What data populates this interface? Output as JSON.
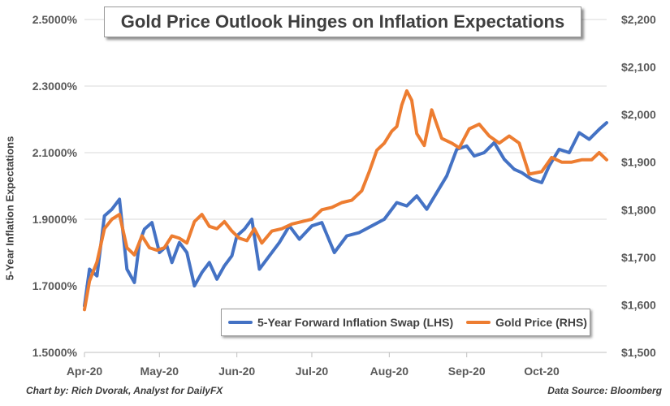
{
  "chart_data": {
    "type": "line",
    "title": "Gold Price Outlook Hinges on Inflation Expectations",
    "ylabel": "5-Year Inflation Expectations",
    "y2label": "",
    "x_ticks": [
      "Apr-20",
      "May-20",
      "Jun-20",
      "Jul-20",
      "Aug-20",
      "Sep-20",
      "Oct-20"
    ],
    "ylim": [
      1.5,
      2.5
    ],
    "y_ticks": [
      "1.5000%",
      "1.7000%",
      "1.9000%",
      "2.1000%",
      "2.3000%",
      "2.5000%"
    ],
    "y2lim": [
      1500,
      2200
    ],
    "y2_ticks": [
      "$1,500",
      "$1,600",
      "$1,700",
      "$1,800",
      "$1,900",
      "$2,000",
      "$2,100",
      "$2,200"
    ],
    "x_range": [
      "2020-04-01",
      "2020-10-27"
    ],
    "grid": "horizontal",
    "legend_position": "bottom-right",
    "series": [
      {
        "name": "5-Year Forward Inflation Swap (LHS)",
        "axis": "left",
        "color": "#4472c4",
        "x": [
          "2020-04-01",
          "2020-04-03",
          "2020-04-06",
          "2020-04-09",
          "2020-04-12",
          "2020-04-15",
          "2020-04-18",
          "2020-04-21",
          "2020-04-23",
          "2020-04-25",
          "2020-04-28",
          "2020-05-01",
          "2020-05-04",
          "2020-05-06",
          "2020-05-09",
          "2020-05-12",
          "2020-05-15",
          "2020-05-18",
          "2020-05-21",
          "2020-05-24",
          "2020-05-27",
          "2020-05-30",
          "2020-06-01",
          "2020-06-04",
          "2020-06-07",
          "2020-06-10",
          "2020-06-14",
          "2020-06-18",
          "2020-06-22",
          "2020-06-26",
          "2020-07-01",
          "2020-07-05",
          "2020-07-10",
          "2020-07-15",
          "2020-07-20",
          "2020-07-25",
          "2020-07-30",
          "2020-08-04",
          "2020-08-08",
          "2020-08-12",
          "2020-08-16",
          "2020-08-20",
          "2020-08-24",
          "2020-08-28",
          "2020-09-01",
          "2020-09-04",
          "2020-09-08",
          "2020-09-12",
          "2020-09-16",
          "2020-09-20",
          "2020-09-23",
          "2020-09-27",
          "2020-10-01",
          "2020-10-04",
          "2020-10-08",
          "2020-10-12",
          "2020-10-16",
          "2020-10-20",
          "2020-10-24",
          "2020-10-27"
        ],
        "y": [
          1.64,
          1.75,
          1.73,
          1.91,
          1.93,
          1.96,
          1.75,
          1.71,
          1.83,
          1.87,
          1.89,
          1.8,
          1.82,
          1.77,
          1.83,
          1.8,
          1.7,
          1.74,
          1.77,
          1.72,
          1.76,
          1.79,
          1.85,
          1.87,
          1.9,
          1.75,
          1.79,
          1.83,
          1.88,
          1.84,
          1.88,
          1.89,
          1.8,
          1.85,
          1.86,
          1.88,
          1.9,
          1.95,
          1.94,
          1.97,
          1.93,
          1.98,
          2.03,
          2.11,
          2.12,
          2.09,
          2.1,
          2.13,
          2.08,
          2.05,
          2.04,
          2.02,
          2.01,
          2.06,
          2.11,
          2.1,
          2.16,
          2.14,
          2.17,
          2.19
        ]
      },
      {
        "name": "Gold Price (RHS)",
        "axis": "right",
        "color": "#ed7d31",
        "x": [
          "2020-04-01",
          "2020-04-03",
          "2020-04-06",
          "2020-04-09",
          "2020-04-12",
          "2020-04-15",
          "2020-04-18",
          "2020-04-21",
          "2020-04-24",
          "2020-04-27",
          "2020-04-30",
          "2020-05-03",
          "2020-05-06",
          "2020-05-09",
          "2020-05-12",
          "2020-05-15",
          "2020-05-18",
          "2020-05-21",
          "2020-05-24",
          "2020-05-27",
          "2020-05-30",
          "2020-06-02",
          "2020-06-05",
          "2020-06-08",
          "2020-06-11",
          "2020-06-15",
          "2020-06-19",
          "2020-06-23",
          "2020-06-27",
          "2020-07-01",
          "2020-07-05",
          "2020-07-09",
          "2020-07-13",
          "2020-07-17",
          "2020-07-21",
          "2020-07-24",
          "2020-07-27",
          "2020-07-30",
          "2020-08-02",
          "2020-08-04",
          "2020-08-06",
          "2020-08-08",
          "2020-08-10",
          "2020-08-12",
          "2020-08-15",
          "2020-08-18",
          "2020-08-22",
          "2020-08-26",
          "2020-08-29",
          "2020-09-02",
          "2020-09-06",
          "2020-09-10",
          "2020-09-14",
          "2020-09-18",
          "2020-09-22",
          "2020-09-26",
          "2020-10-01",
          "2020-10-05",
          "2020-10-09",
          "2020-10-13",
          "2020-10-17",
          "2020-10-21",
          "2020-10-24",
          "2020-10-27"
        ],
        "y": [
          1590,
          1650,
          1690,
          1760,
          1780,
          1790,
          1720,
          1705,
          1745,
          1720,
          1715,
          1720,
          1745,
          1740,
          1730,
          1775,
          1790,
          1765,
          1760,
          1775,
          1755,
          1740,
          1735,
          1760,
          1730,
          1755,
          1760,
          1770,
          1775,
          1780,
          1800,
          1805,
          1815,
          1820,
          1840,
          1880,
          1925,
          1940,
          1965,
          1975,
          2020,
          2050,
          2030,
          1960,
          1935,
          2010,
          1950,
          1940,
          1930,
          1970,
          1980,
          1955,
          1940,
          1955,
          1940,
          1875,
          1880,
          1910,
          1900,
          1900,
          1905,
          1905,
          1920,
          1905
        ]
      }
    ]
  },
  "legend": {
    "series1": "5-Year Forward Inflation Swap (LHS)",
    "series2": "Gold Price (RHS)"
  },
  "footer": {
    "left": "Chart by: Rich Dvorak, Analyst for DailyFX",
    "right": "Data Source: Bloomberg"
  },
  "colors": {
    "series1": "#4472c4",
    "series2": "#ed7d31",
    "grid": "#d9d9d9",
    "text": "#404040"
  }
}
